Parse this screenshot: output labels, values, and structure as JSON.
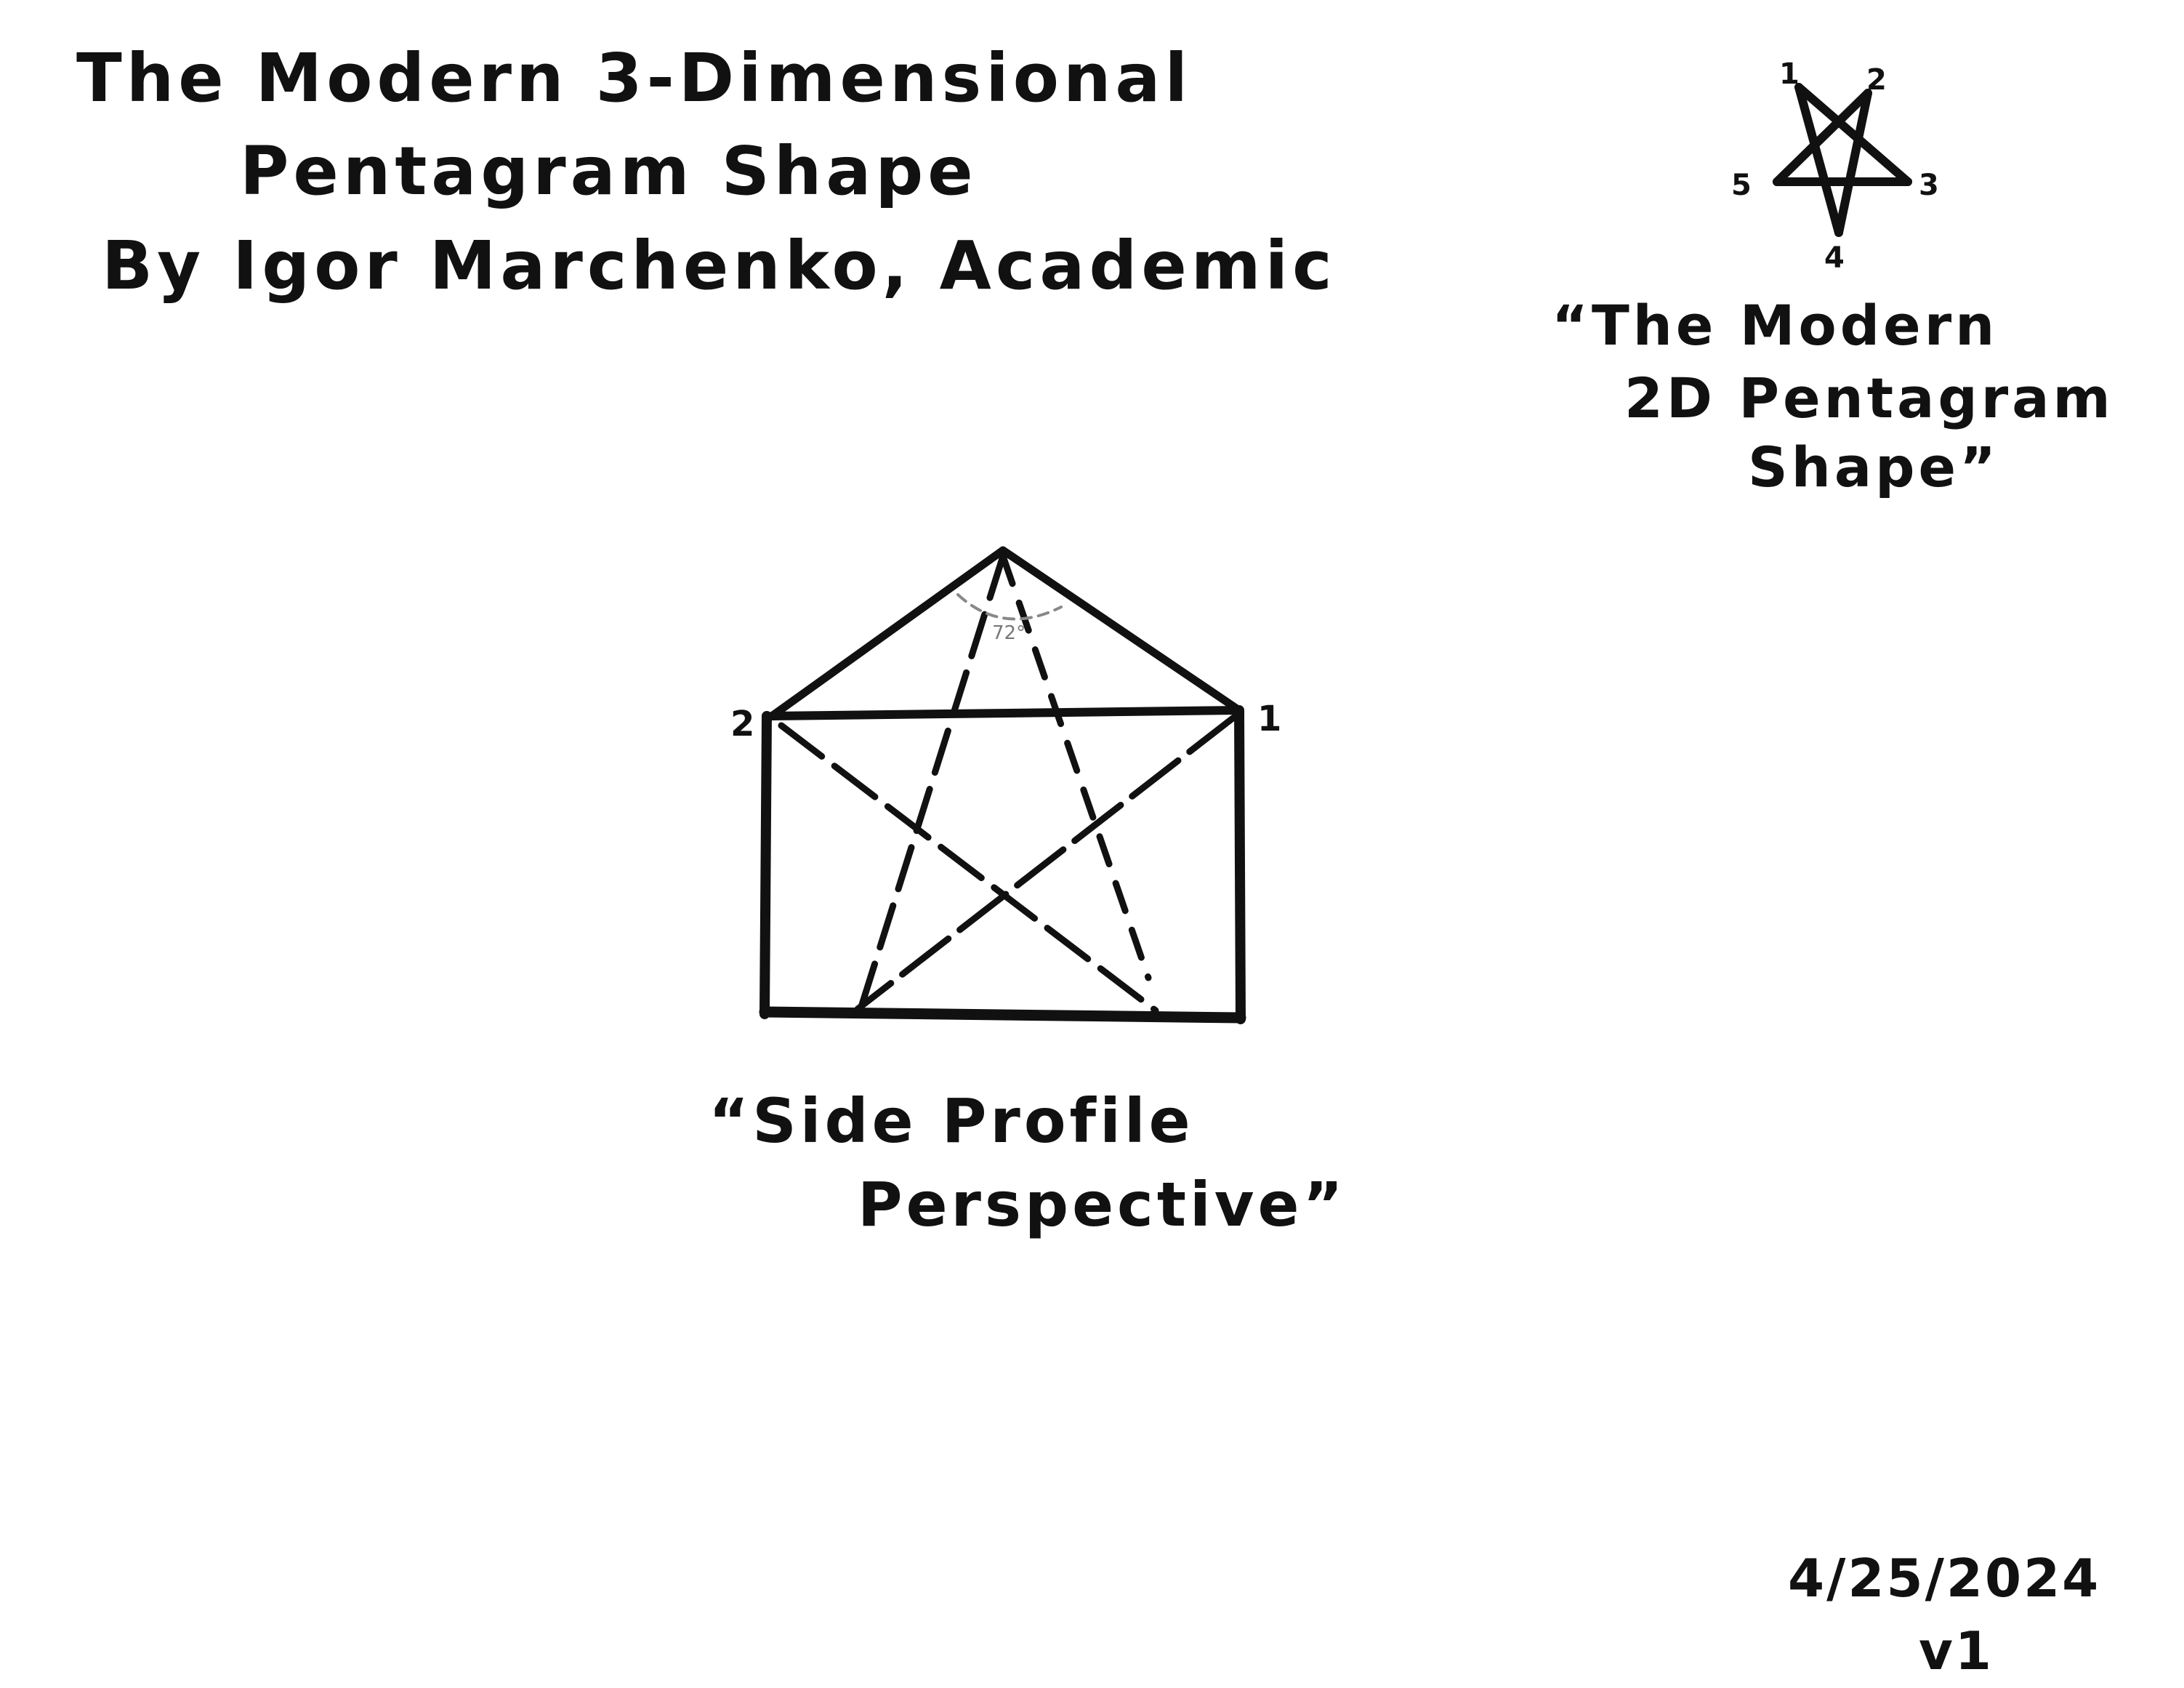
{
  "title": {
    "line1": "The Modern 3-Dimensional",
    "line2": "Pentagram Shape",
    "line3": "By Igor Marchenko, Academic"
  },
  "pentagram_2d": {
    "caption_line1": "“The Modern",
    "caption_line2": "2D Pentagram",
    "caption_line3": "Shape”",
    "vertex_labels": [
      "1",
      "2",
      "3",
      "4",
      "5"
    ]
  },
  "side_profile": {
    "caption_line1": "“Side Profile",
    "caption_line2": "Perspective”",
    "corner_label_left": "2",
    "corner_label_right": "1",
    "angle_label": "72°"
  },
  "footer": {
    "date": "4/25/2024",
    "version": "v1"
  },
  "colors": {
    "ink": "#111111",
    "paper": "#ffffff"
  }
}
